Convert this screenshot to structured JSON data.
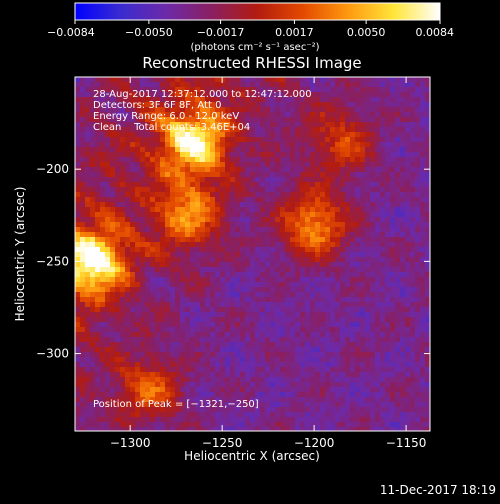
{
  "colorbar": {
    "min": -0.0084,
    "max": 0.0084,
    "ticks": [
      -0.0084,
      -0.005,
      -0.0017,
      0.0017,
      0.005,
      0.0084
    ],
    "tick_labels": [
      "−0.0084",
      "−0.0050",
      "−0.0017",
      "0.0017",
      "0.0050",
      "0.0084"
    ],
    "unit_label": "(photons cm⁻² s⁻¹ asec⁻²)",
    "colors": [
      "#0000ff",
      "#3a2bd0",
      "#6d2aa8",
      "#8a1f60",
      "#b31c10",
      "#e34a00",
      "#ff9a10",
      "#ffe63a",
      "#ffffff"
    ]
  },
  "chart_data": {
    "type": "heatmap",
    "title": "Reconstructed RHESSI Image",
    "xlabel": "Heliocentric X (arcsec)",
    "ylabel": "Heliocentric Y (arcsec)",
    "xlim": [
      -1330,
      -1137
    ],
    "ylim": [
      -342,
      -150
    ],
    "x_ticks": [
      -1300,
      -1250,
      -1200,
      -1150
    ],
    "x_tick_labels": [
      "−1300",
      "−1250",
      "−1200",
      "−1150"
    ],
    "y_ticks": [
      -200,
      -250,
      -300
    ],
    "y_tick_labels": [
      "−200",
      "−250",
      "−300"
    ],
    "peak": {
      "x": -1321,
      "y": -250
    },
    "sources": [
      {
        "x": -1321,
        "y": -250,
        "relative_intensity": 1.0
      },
      {
        "x": -1265,
        "y": -185,
        "relative_intensity": 0.9
      },
      {
        "x": -1268,
        "y": -225,
        "relative_intensity": 0.55
      },
      {
        "x": -1200,
        "y": -230,
        "relative_intensity": 0.7
      },
      {
        "x": -1185,
        "y": -185,
        "relative_intensity": 0.45
      },
      {
        "x": -1290,
        "y": -320,
        "relative_intensity": 0.5
      }
    ],
    "annotations": [
      "28-Aug-2017 12:37:12.000 to 12:47:12.000",
      "Detectors: 3F 6F 8F, Att 0",
      "Energy Range: 6.0 - 12.0 keV",
      "Clean    Total counts: 3.46E+04",
      "Position of Peak = [−1321,−250]"
    ]
  },
  "footer": {
    "timestamp": "11-Dec-2017 18:19"
  }
}
